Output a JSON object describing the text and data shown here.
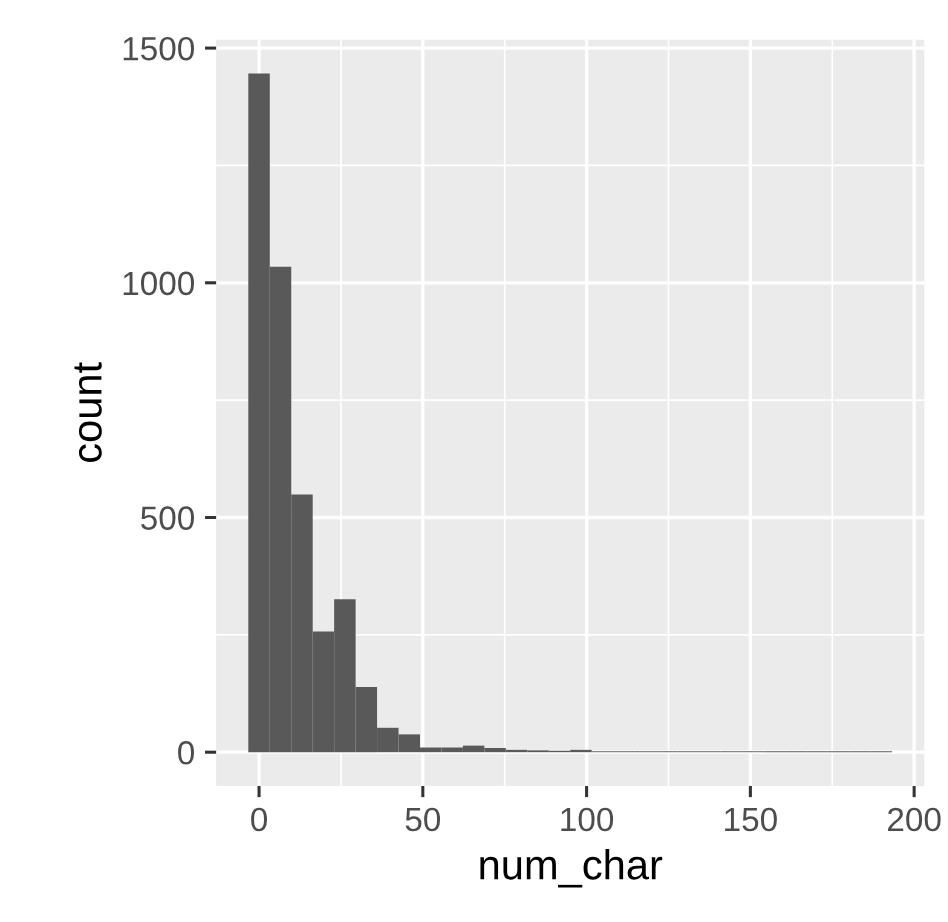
{
  "chart_data": {
    "type": "histogram",
    "xlabel": "num_char",
    "ylabel": "count",
    "bins": [
      -3.28,
      3.28,
      9.83,
      16.38,
      22.93,
      29.48,
      36.03,
      42.59,
      49.14,
      55.69,
      62.24,
      68.79,
      75.34,
      81.9,
      88.45,
      95.0,
      101.55,
      108.1,
      114.66,
      121.21,
      127.76,
      134.31,
      140.86,
      147.41,
      153.97,
      160.52,
      167.07,
      173.62,
      180.17,
      186.72,
      193.28
    ],
    "values": [
      1446,
      1034,
      549,
      257,
      326,
      139,
      52,
      38,
      10,
      10,
      14,
      9,
      5,
      4,
      3,
      5,
      2,
      2,
      2,
      2,
      2,
      2,
      2,
      2,
      2,
      2,
      2,
      2,
      2,
      2
    ],
    "color": "#595959",
    "xlim": [
      -13.1,
      203.1
    ],
    "ylim": [
      -72,
      1518
    ],
    "xticks": [
      0,
      50,
      100,
      150,
      200
    ],
    "yticks": [
      0,
      500,
      1000,
      1500
    ],
    "grid": true
  }
}
